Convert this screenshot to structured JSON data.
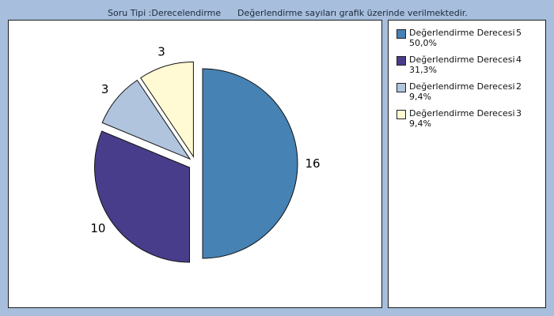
{
  "header": {
    "question_type": "Soru Tipi :Derecelendirme",
    "note": "Değerlendirme sayıları grafik üzerinde verilmektedir."
  },
  "chart_data": {
    "type": "pie",
    "title": "",
    "grid": false,
    "legend_position": "right",
    "slices": [
      {
        "label": "Değerlendirme Derecesi",
        "degree": "5",
        "value": 16,
        "percent": "50,0%",
        "color": "#4682b4"
      },
      {
        "label": "Değerlendirme Derecesi",
        "degree": "4",
        "value": 10,
        "percent": "31,3%",
        "color": "#483d8b"
      },
      {
        "label": "Değerlendirme Derecesi",
        "degree": "2",
        "value": 3,
        "percent": "9,4%",
        "color": "#b0c4de"
      },
      {
        "label": "Değerlendirme Derecesi",
        "degree": "3",
        "value": 3,
        "percent": "9,4%",
        "color": "#fffad3"
      }
    ]
  }
}
